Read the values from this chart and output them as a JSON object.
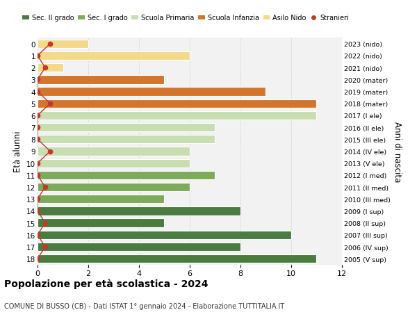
{
  "ages": [
    18,
    17,
    16,
    15,
    14,
    13,
    12,
    11,
    10,
    9,
    8,
    7,
    6,
    5,
    4,
    3,
    2,
    1,
    0
  ],
  "right_labels": [
    "2005 (V sup)",
    "2006 (IV sup)",
    "2007 (III sup)",
    "2008 (II sup)",
    "2009 (I sup)",
    "2010 (III med)",
    "2011 (II med)",
    "2012 (I med)",
    "2013 (V ele)",
    "2014 (IV ele)",
    "2015 (III ele)",
    "2016 (II ele)",
    "2017 (I ele)",
    "2018 (mater)",
    "2019 (mater)",
    "2020 (mater)",
    "2021 (nido)",
    "2022 (nido)",
    "2023 (nido)"
  ],
  "bar_values": [
    11,
    8,
    10,
    5,
    8,
    5,
    6,
    7,
    6,
    6,
    7,
    7,
    11,
    11,
    9,
    5,
    1,
    6,
    2
  ],
  "bar_colors": [
    "#4a7c3f",
    "#4a7c3f",
    "#4a7c3f",
    "#4a7c3f",
    "#4a7c3f",
    "#7daa5b",
    "#7daa5b",
    "#7daa5b",
    "#c8ddb0",
    "#c8ddb0",
    "#c8ddb0",
    "#c8ddb0",
    "#c8ddb0",
    "#d4752e",
    "#d4752e",
    "#d4752e",
    "#f5d98a",
    "#f5d98a",
    "#f5d98a"
  ],
  "stranieri_x": [
    0,
    0.3,
    0,
    0.3,
    0,
    0,
    0.3,
    0,
    0,
    0.5,
    0,
    0,
    0,
    0.5,
    0,
    0,
    0.3,
    0,
    0.5
  ],
  "title": "Popolazione per età scolastica - 2024",
  "subtitle": "COMUNE DI BUSSO (CB) - Dati ISTAT 1° gennaio 2024 - Elaborazione TUTTITALIA.IT",
  "ylabel": "Età alunni",
  "right_ylabel": "Anni di nascita",
  "xlim": [
    0,
    12
  ],
  "xticks": [
    0,
    2,
    4,
    6,
    8,
    10,
    12
  ],
  "legend_labels": [
    "Sec. II grado",
    "Sec. I grado",
    "Scuola Primaria",
    "Scuola Infanzia",
    "Asilo Nido",
    "Stranieri"
  ],
  "legend_colors": [
    "#4a7c3f",
    "#7daa5b",
    "#c8ddb0",
    "#d4752e",
    "#f5d98a",
    "#c0392b"
  ],
  "bg_color": "#ffffff",
  "plot_bg_color": "#f2f2f2",
  "bar_height": 0.72,
  "stranieri_dot_color": "#c0392b",
  "stranieri_line_color": "#c0392b"
}
